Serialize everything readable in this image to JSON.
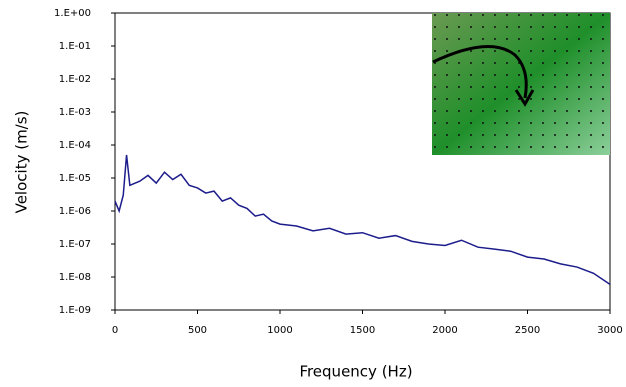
{
  "chart_data": {
    "type": "line",
    "x_label": "Frequency (Hz)",
    "y_label": "Velocity (m/s)",
    "x": [
      0,
      25,
      50,
      70,
      90,
      150,
      200,
      250,
      300,
      350,
      400,
      450,
      500,
      550,
      600,
      650,
      700,
      750,
      800,
      850,
      900,
      950,
      1000,
      1100,
      1200,
      1300,
      1400,
      1500,
      1600,
      1700,
      1800,
      1900,
      2000,
      2100,
      2200,
      2300,
      2400,
      2500,
      2600,
      2700,
      2800,
      2900,
      3000
    ],
    "values": [
      2e-06,
      1e-06,
      3e-06,
      5e-05,
      6e-06,
      8e-06,
      1.2e-05,
      7e-06,
      1.5e-05,
      9e-06,
      1.3e-05,
      6e-06,
      5e-06,
      3.5e-06,
      4e-06,
      2e-06,
      2.5e-06,
      1.5e-06,
      1.2e-06,
      7e-07,
      8e-07,
      5e-07,
      4e-07,
      3.5e-07,
      2.5e-07,
      3e-07,
      2e-07,
      2.2e-07,
      1.5e-07,
      1.8e-07,
      1.2e-07,
      1e-07,
      9e-08,
      1.3e-07,
      8e-08,
      7e-08,
      6e-08,
      4e-08,
      3.5e-08,
      2.5e-08,
      2e-08,
      1.3e-08,
      6e-09
    ],
    "color": "#1c1c8c",
    "xlim": [
      0,
      3000
    ],
    "xticks": [
      0,
      500,
      1000,
      1500,
      2000,
      2500,
      3000
    ],
    "ylim": [
      1e-09,
      1
    ],
    "y_scale": "log",
    "yticks": [
      {
        "value": 1,
        "label": "1.E+00"
      },
      {
        "value": 0.1,
        "label": "1.E-01"
      },
      {
        "value": 0.01,
        "label": "1.E-02"
      },
      {
        "value": 0.001,
        "label": "1.E-03"
      },
      {
        "value": 0.0001,
        "label": "1.E-04"
      },
      {
        "value": 1e-05,
        "label": "1.E-05"
      },
      {
        "value": 1e-06,
        "label": "1.E-06"
      },
      {
        "value": 1e-07,
        "label": "1.E-07"
      },
      {
        "value": 1e-08,
        "label": "1.E-08"
      },
      {
        "value": 1e-09,
        "label": "1.E-09"
      }
    ]
  }
}
